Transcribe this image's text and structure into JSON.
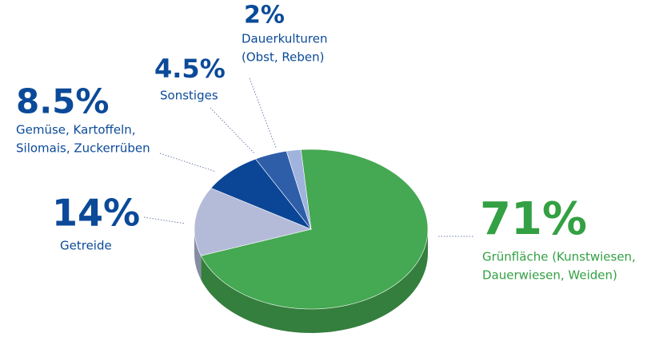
{
  "chart_data": {
    "type": "pie",
    "categories": [
      [
        "Grünfläche (Kunstwiesen,",
        "Dauerwiesen, Weiden)"
      ],
      [
        "Getreide"
      ],
      [
        "Gemüse, Kartoffeln,",
        "Silomais, Zuckerrüben"
      ],
      [
        "Sonstiges"
      ],
      [
        "Dauerkulturen",
        "(Obst, Reben)"
      ]
    ],
    "values": [
      71,
      14,
      8.5,
      4.5,
      2
    ],
    "value_labels": [
      "71%",
      "14%",
      "8.5%",
      "4.5%",
      "2%"
    ],
    "colors": [
      "#45a852",
      "#b3bbd8",
      "#0b4696",
      "#2f5ea9",
      "#9fb3dd"
    ]
  }
}
